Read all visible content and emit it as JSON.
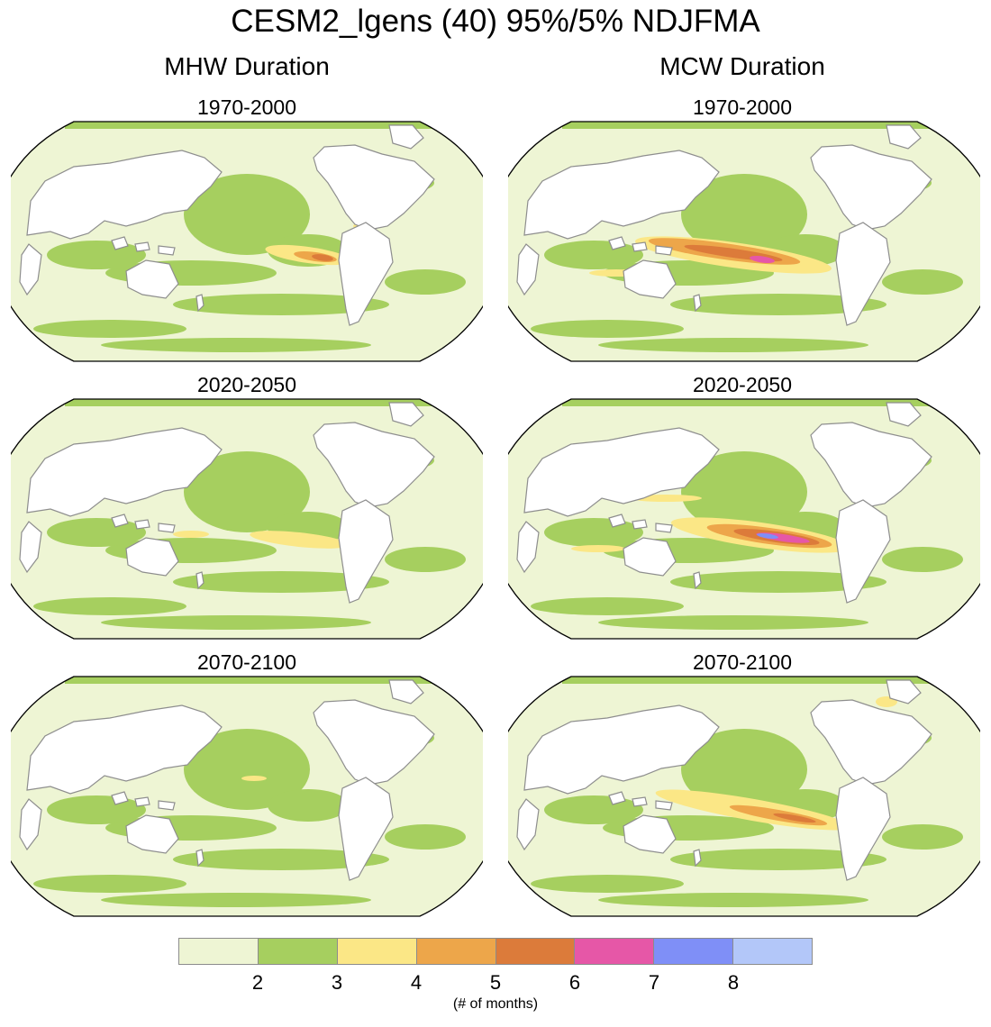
{
  "title": "CESM2_lgens (40) 95%/5% NDJFMA",
  "columns": [
    {
      "title": "MHW Duration"
    },
    {
      "title": "MCW Duration"
    }
  ],
  "periods": [
    "1970-2000",
    "2020-2050",
    "2070-2100"
  ],
  "panels": [
    {
      "column": "MHW Duration",
      "period": "1970-2000",
      "peak_level": 5
    },
    {
      "column": "MHW Duration",
      "period": "2020-2050",
      "peak_level": 4
    },
    {
      "column": "MHW Duration",
      "period": "2070-2100",
      "peak_level": 4
    },
    {
      "column": "MCW Duration",
      "period": "1970-2000",
      "peak_level": 7
    },
    {
      "column": "MCW Duration",
      "period": "2020-2050",
      "peak_level": 8
    },
    {
      "column": "MCW Duration",
      "period": "2070-2100",
      "peak_level": 6
    }
  ],
  "colorbar": {
    "colors": [
      "#eef5d4",
      "#a6cf5f",
      "#fbe786",
      "#eda64a",
      "#dc7b3a",
      "#e657a7",
      "#7f8ff7",
      "#b3c7f9"
    ],
    "ticks": [
      "2",
      "3",
      "4",
      "5",
      "6",
      "7",
      "8"
    ],
    "unit_label": "(# of months)"
  },
  "palette": {
    "land": "#ffffff",
    "coast": "#8e8e8e",
    "outline": "#000000"
  }
}
